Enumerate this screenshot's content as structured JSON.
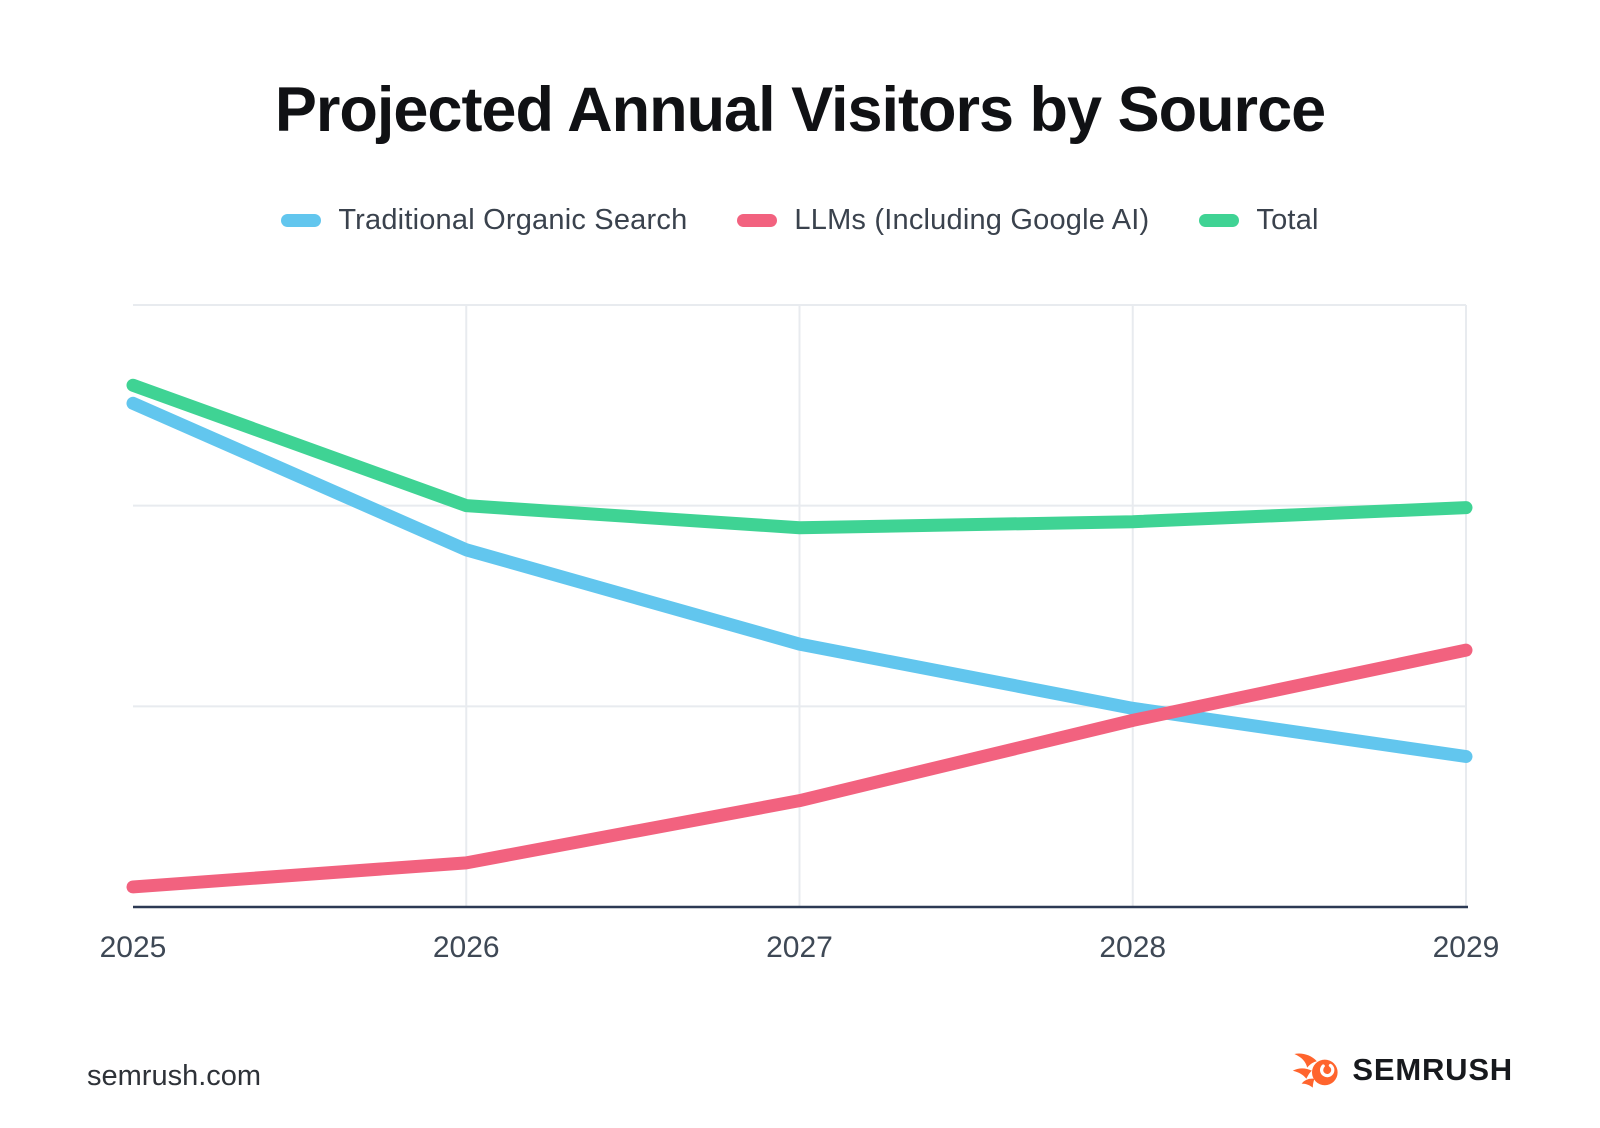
{
  "title": "Projected Annual Visitors by Source",
  "footer": {
    "source": "semrush.com",
    "brand": "SEMRUSH",
    "brand_color": "#ff642d"
  },
  "chart_data": {
    "type": "line",
    "title": "Projected Annual Visitors by Source",
    "x": [
      "2025",
      "2026",
      "2027",
      "2028",
      "2029"
    ],
    "series": [
      {
        "name": "Traditional Organic Search",
        "color": "#62c6ee",
        "values": [
          2.51,
          1.78,
          1.31,
          0.99,
          0.75
        ]
      },
      {
        "name": "LLMs (Including Google AI)",
        "color": "#f2627f",
        "values": [
          0.1,
          0.22,
          0.53,
          0.93,
          1.28
        ]
      },
      {
        "name": "Total",
        "color": "#3fd394",
        "values": [
          2.6,
          2.0,
          1.89,
          1.92,
          1.99
        ]
      }
    ],
    "xlabel": "",
    "ylabel": "",
    "ylim": [
      0,
      3
    ],
    "y_tick_labels_visible": false,
    "grid": true,
    "legend_position": "top",
    "axis_color": "#2c3a54",
    "grid_color": "#e8ebef",
    "note": "Y axis has no numeric labels in the source image; values are estimated in gridline units (1.0 = one horizontal gridline spacing above the baseline)."
  }
}
